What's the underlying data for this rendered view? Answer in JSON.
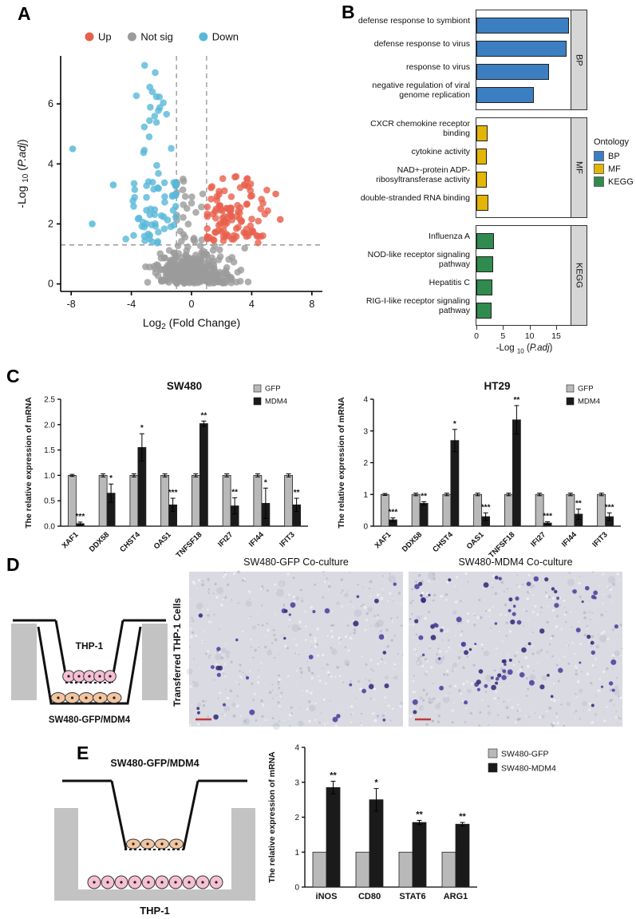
{
  "figure": {
    "panels": {
      "a_label": "A",
      "b_label": "B",
      "c_label": "C",
      "d_label": "D",
      "e_label": "E"
    }
  },
  "chart_data": [
    {
      "id": "volcano",
      "type": "scatter",
      "xlabel_parts": [
        {
          "t": "Log"
        },
        {
          "t": "2",
          "sub": true
        },
        {
          "t": " (Fold Change)"
        }
      ],
      "ylabel_parts": [
        {
          "t": "-Log "
        },
        {
          "t": "10",
          "sub": true
        },
        {
          "t": " ("
        },
        {
          "t": "P.adj",
          "italic": true
        },
        {
          "t": ")"
        }
      ],
      "xlim": [
        -8.7,
        8.7
      ],
      "ylim": [
        -0.25,
        7.6
      ],
      "xticks": [
        -8,
        -4,
        0,
        4,
        8
      ],
      "yticks": [
        0,
        2,
        4,
        6
      ],
      "fc_thresholds": [
        -1,
        1
      ],
      "p_threshold": 1.3,
      "legend": [
        {
          "label": "Up",
          "color": "#E8604D"
        },
        {
          "label": "Not sig",
          "color": "#9B9B9B"
        },
        {
          "label": "Down",
          "color": "#57B8D8"
        }
      ],
      "point_distribution": {
        "note": "estimated clusters read from figure",
        "clusters": [
          {
            "color": "#9B9B9B",
            "n": 310,
            "xm": 0,
            "xs": 1.35,
            "xmin": -4.6,
            "xmax": 4.6,
            "ymode": "half",
            "ys": 0.5,
            "ymax": 1.27
          },
          {
            "color": "#9B9B9B",
            "n": 26,
            "xm": -0.45,
            "xs": 0.5,
            "xmin": -0.98,
            "xmax": 0.95,
            "ymode": "uniform",
            "ylo": 1.3,
            "yhi": 3.5
          },
          {
            "color": "#57B8D8",
            "n": 58,
            "xm": -2.4,
            "xs": 1.0,
            "xmin": -5.8,
            "xmax": -1.05,
            "ymode": "uniform",
            "ylo": 1.35,
            "yhi": 3.4
          },
          {
            "color": "#57B8D8",
            "n": 16,
            "xm": -2.5,
            "xs": 0.65,
            "xmin": -4.3,
            "xmax": -1.35,
            "ymode": "uniform",
            "ylo": 3.4,
            "yhi": 6.1
          },
          {
            "color": "#57B8D8",
            "n": 7,
            "xm": -2.6,
            "xs": 0.5,
            "xmin": -3.7,
            "xmax": -1.8,
            "ymode": "uniform",
            "ylo": 6.1,
            "yhi": 7.3
          },
          {
            "color": "#E8604D",
            "n": 85,
            "xm": 2.6,
            "xs": 1.15,
            "xmin": 1.05,
            "xmax": 5.7,
            "ymode": "uniform",
            "ylo": 1.35,
            "yhi": 2.7
          },
          {
            "color": "#E8604D",
            "n": 24,
            "xm": 2.9,
            "xs": 0.95,
            "xmin": 1.3,
            "xmax": 5.4,
            "ymode": "uniform",
            "ylo": 2.7,
            "yhi": 3.6
          }
        ],
        "extra_points": [
          {
            "x": -7.9,
            "y": 4.5,
            "color": "#57B8D8"
          },
          {
            "x": -6.6,
            "y": 2.0,
            "color": "#57B8D8"
          },
          {
            "x": -5.2,
            "y": 3.3,
            "color": "#57B8D8"
          },
          {
            "x": 5.9,
            "y": 2.15,
            "color": "#E8604D"
          },
          {
            "x": 5.6,
            "y": 3.0,
            "color": "#E8604D"
          }
        ]
      }
    },
    {
      "id": "go_enrichment",
      "type": "bar",
      "orientation": "horizontal",
      "xlabel_parts": [
        {
          "t": "-Log "
        },
        {
          "t": "10",
          "sub": true
        },
        {
          "t": " ("
        },
        {
          "t": "P.adj",
          "italic": true
        },
        {
          "t": ")"
        }
      ],
      "xlim": [
        0,
        18
      ],
      "xticks": [
        0,
        5,
        10,
        15
      ],
      "legend_title": "Ontology",
      "legend": [
        {
          "label": "BP",
          "color": "#3B7FC2"
        },
        {
          "label": "MF",
          "color": "#E3B505"
        },
        {
          "label": "KEGG",
          "color": "#2F8B4E"
        }
      ],
      "groups": [
        {
          "name": "BP",
          "color": "#3B7FC2",
          "terms": [
            {
              "label": "defense response to symbiont",
              "value": 17.4
            },
            {
              "label": "defense response to virus",
              "value": 17.0
            },
            {
              "label": "response to virus",
              "value": 13.6
            },
            {
              "label": "negative regulation of viral genome replication",
              "value": 10.8
            }
          ]
        },
        {
          "name": "MF",
          "color": "#E3B505",
          "terms": [
            {
              "label": "CXCR chemokine receptor binding",
              "value": 2.1
            },
            {
              "label": "cytokine activity",
              "value": 1.9
            },
            {
              "label": "NAD+-protein ADP-ribosyltransferase activity",
              "value": 1.9
            },
            {
              "label": "double-stranded RNA binding",
              "value": 2.3
            }
          ]
        },
        {
          "name": "KEGG",
          "color": "#2F8B4E",
          "terms": [
            {
              "label": "Influenza A",
              "value": 3.3
            },
            {
              "label": "NOD-like receptor signaling pathway",
              "value": 3.1
            },
            {
              "label": "Hepatitis C",
              "value": 3.0
            },
            {
              "label": "RIG-I-like receptor signaling pathway",
              "value": 2.9
            }
          ]
        }
      ]
    },
    {
      "id": "sw480_expression",
      "type": "grouped_bar",
      "title": "SW480",
      "ylabel": "The relative expression of mRNA",
      "ylim": [
        0,
        2.5
      ],
      "yticks": [
        0,
        0.5,
        1,
        1.5,
        2,
        2.5
      ],
      "categories": [
        "XAF1",
        "DDX58",
        "CHST4",
        "OAS1",
        "TNFSF18",
        "IFI27",
        "IFI44",
        "IFIT3"
      ],
      "series": [
        {
          "name": "GFP",
          "color": "#b9b9b9",
          "values": [
            1,
            1,
            1,
            1,
            1,
            1,
            1,
            1
          ],
          "errors": [
            0.02,
            0.03,
            0.03,
            0.03,
            0.03,
            0.03,
            0.03,
            0.03
          ]
        },
        {
          "name": "MDM4",
          "color": "#1a1a1a",
          "values": [
            0.05,
            0.65,
            1.55,
            0.42,
            2.02,
            0.4,
            0.45,
            0.42
          ],
          "errors": [
            0.03,
            0.18,
            0.27,
            0.13,
            0.05,
            0.16,
            0.3,
            0.13
          ]
        }
      ],
      "significance": [
        "***",
        "*",
        "*",
        "***",
        "**",
        "**",
        "*",
        "**"
      ]
    },
    {
      "id": "ht29_expression",
      "type": "grouped_bar",
      "title": "HT29",
      "ylabel": "The relative expression of mRNA",
      "ylim": [
        0,
        4
      ],
      "yticks": [
        0,
        1,
        2,
        3,
        4
      ],
      "categories": [
        "XAF1",
        "DDX58",
        "CHST4",
        "OAS1",
        "TNFSF18",
        "IFI27",
        "IFI44",
        "IFIT3"
      ],
      "series": [
        {
          "name": "GFP",
          "color": "#b9b9b9",
          "values": [
            1,
            1,
            1,
            1,
            1,
            1,
            1,
            1
          ],
          "errors": [
            0.03,
            0.04,
            0.04,
            0.04,
            0.04,
            0.04,
            0.04,
            0.04
          ]
        },
        {
          "name": "MDM4",
          "color": "#1a1a1a",
          "values": [
            0.2,
            0.72,
            2.7,
            0.3,
            3.35,
            0.1,
            0.38,
            0.3
          ],
          "errors": [
            0.06,
            0.05,
            0.35,
            0.12,
            0.45,
            0.04,
            0.16,
            0.12
          ]
        }
      ],
      "significance": [
        "***",
        "**",
        "*",
        "***",
        "**",
        "***",
        "**",
        "***"
      ]
    },
    {
      "id": "thp1_polarization",
      "type": "grouped_bar",
      "title": "",
      "ylabel": "The relative expression of mRNA",
      "ylim": [
        0,
        4
      ],
      "yticks": [
        0,
        1,
        2,
        3,
        4
      ],
      "categories": [
        "iNOS",
        "CD80",
        "STAT6",
        "ARG1"
      ],
      "series": [
        {
          "name": "SW480-GFP",
          "color": "#b9b9b9",
          "values": [
            1,
            1,
            1,
            1
          ],
          "errors": [
            0,
            0,
            0,
            0
          ]
        },
        {
          "name": "SW480-MDM4",
          "color": "#1a1a1a",
          "values": [
            2.85,
            2.5,
            1.85,
            1.8
          ],
          "errors": [
            0.18,
            0.32,
            0.06,
            0.05
          ]
        }
      ],
      "significance": [
        "**",
        "*",
        "**",
        "**"
      ]
    }
  ],
  "panel_d": {
    "diagram": {
      "insert_label": "THP-1",
      "bottom_label": "SW480-GFP/MDM4"
    },
    "row_label": "Transferred THP-1 Cells",
    "images": [
      {
        "title": "SW480-GFP Co-culture",
        "stained_cells": 26,
        "cluster_count": 2,
        "seed": 11,
        "scalebar_color": "#c03a3a"
      },
      {
        "title": "SW480-MDM4 Co-culture",
        "stained_cells": 55,
        "cluster_count": 8,
        "seed": 23,
        "scalebar_color": "#c03a3a"
      }
    ]
  },
  "panel_e": {
    "diagram": {
      "insert_label": "SW480-GFP/MDM4",
      "bottom_label": "THP-1"
    }
  }
}
